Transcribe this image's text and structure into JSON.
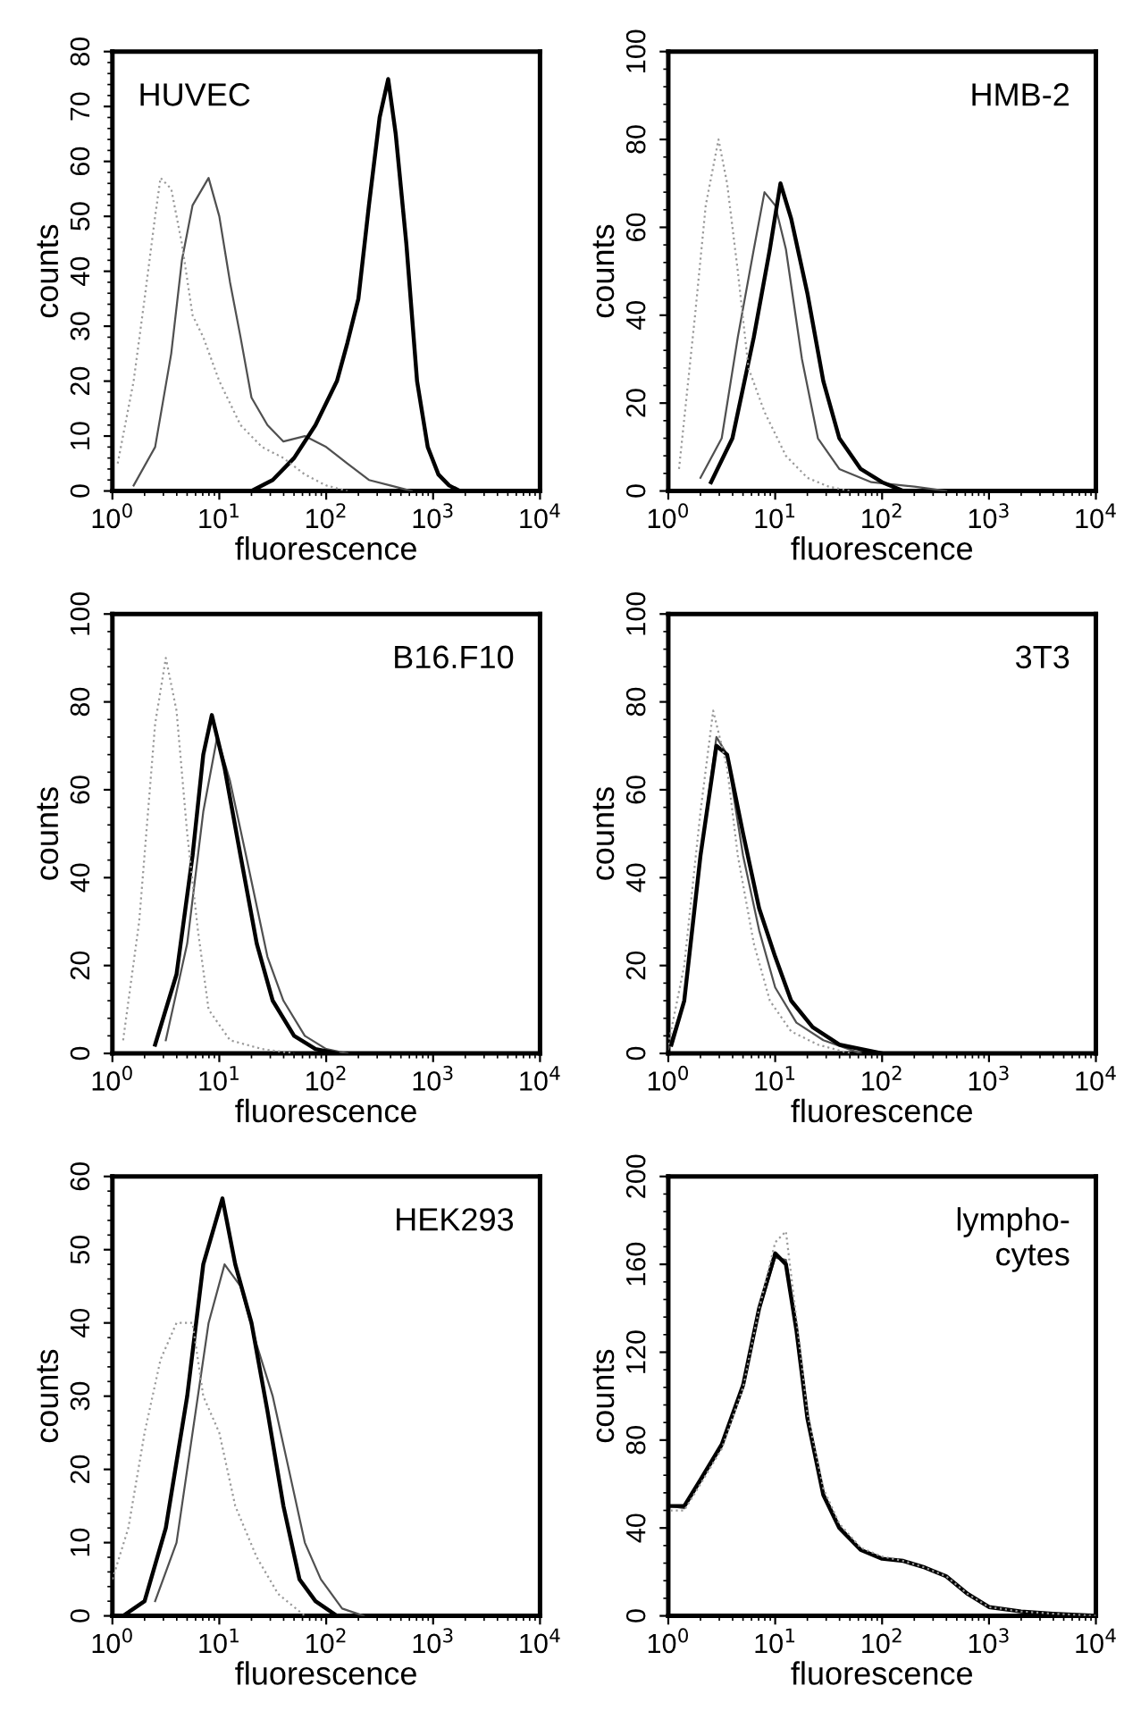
{
  "chart_data": [
    {
      "type": "line",
      "log": "x",
      "xlabel": "fluorescence",
      "ylabel": "counts",
      "annotations": [
        "HUVEC"
      ],
      "xlim": [
        1,
        10000
      ],
      "xticks": [
        {
          "value": 1,
          "label": "10$^{0}$"
        },
        {
          "value": 10,
          "label": "10$^{1}$"
        },
        {
          "value": 100,
          "label": "10$^{2}$"
        },
        {
          "value": 1000,
          "label": "10$^{3}$"
        },
        {
          "value": 10000,
          "label": "10$^{4}$"
        }
      ],
      "ylim": [
        0,
        80
      ],
      "yticks": [
        0,
        10,
        20,
        30,
        40,
        50,
        60,
        70,
        80
      ],
      "series": [
        {
          "color": "#9a9a9a",
          "line_style": "dotted",
          "x": [
            1.12,
            1.58,
            2.0,
            2.51,
            2.82,
            3.55,
            4.47,
            5.62,
            7.08,
            10,
            15.8,
            25.1,
            39.8,
            63.1,
            100,
            158
          ],
          "values": [
            5,
            20,
            35,
            50,
            57,
            55,
            45,
            32,
            28,
            20,
            12,
            8,
            6,
            3,
            1,
            0
          ]
        },
        {
          "color": "#505050",
          "line_style": "solid",
          "x": [
            1.58,
            2.51,
            3.55,
            4.47,
            5.62,
            7.94,
            10,
            12.6,
            15.8,
            20,
            28.2,
            39.8,
            63.1,
            100,
            158,
            251,
            398,
            631
          ],
          "values": [
            1,
            8,
            25,
            42,
            52,
            57,
            50,
            38,
            28,
            17,
            12,
            9,
            10,
            8,
            5,
            2,
            1,
            0
          ]
        },
        {
          "color": "#000000",
          "line_style": "solid",
          "x": [
            20,
            31.6,
            50.1,
            79.4,
            126,
            158,
            200,
            251,
            316,
            380,
            447,
            562,
            708,
            891,
            1122,
            1413,
            1778
          ],
          "values": [
            0,
            2,
            6,
            12,
            20,
            27,
            35,
            52,
            68,
            75,
            65,
            45,
            20,
            8,
            3,
            1,
            0
          ]
        }
      ]
    },
    {
      "type": "line",
      "log": "x",
      "xlabel": "fluorescence",
      "ylabel": "counts",
      "annotations": [
        "HMB-2"
      ],
      "xlim": [
        1,
        10000
      ],
      "xticks": [
        {
          "value": 1,
          "label": "10$^{0}$"
        },
        {
          "value": 10,
          "label": "10$^{1}$"
        },
        {
          "value": 100,
          "label": "10$^{2}$"
        },
        {
          "value": 1000,
          "label": "10$^{3}$"
        },
        {
          "value": 10000,
          "label": "10$^{4}$"
        }
      ],
      "ylim": [
        0,
        100
      ],
      "yticks": [
        0,
        20,
        40,
        60,
        80,
        100
      ],
      "series": [
        {
          "color": "#9a9a9a",
          "line_style": "dotted",
          "x": [
            1.26,
            1.78,
            2.24,
            2.95,
            3.55,
            4.47,
            5.62,
            7.94,
            12.6,
            20,
            31.6,
            50.1
          ],
          "values": [
            5,
            40,
            65,
            80,
            70,
            50,
            28,
            18,
            8,
            3,
            1,
            0
          ]
        },
        {
          "color": "#505050",
          "line_style": "solid",
          "x": [
            2.0,
            3.16,
            4.47,
            6.31,
            7.94,
            10,
            12.6,
            17.8,
            25.1,
            39.8,
            79.4,
            200,
            398
          ],
          "values": [
            3,
            12,
            35,
            55,
            68,
            65,
            55,
            30,
            12,
            5,
            2,
            1,
            0
          ]
        },
        {
          "color": "#000000",
          "line_style": "solid",
          "x": [
            2.51,
            3.98,
            6.31,
            8.91,
            11.2,
            14.1,
            20,
            28.2,
            39.8,
            63.1,
            100,
            158
          ],
          "values": [
            2,
            12,
            35,
            55,
            70,
            62,
            45,
            25,
            12,
            5,
            2,
            0
          ]
        }
      ]
    },
    {
      "type": "line",
      "log": "x",
      "xlabel": "fluorescence",
      "ylabel": "counts",
      "annotations": [
        "B16.F10"
      ],
      "xlim": [
        1,
        10000
      ],
      "xticks": [
        {
          "value": 1,
          "label": "10$^{0}$"
        },
        {
          "value": 10,
          "label": "10$^{1}$"
        },
        {
          "value": 100,
          "label": "10$^{2}$"
        },
        {
          "value": 1000,
          "label": "10$^{3}$"
        },
        {
          "value": 10000,
          "label": "10$^{4}$"
        }
      ],
      "ylim": [
        0,
        100
      ],
      "yticks": [
        0,
        20,
        40,
        60,
        80,
        100
      ],
      "series": [
        {
          "color": "#9a9a9a",
          "line_style": "dotted",
          "x": [
            1.26,
            1.78,
            2.51,
            3.16,
            3.98,
            5.01,
            6.31,
            7.94,
            12.6,
            25.1,
            50.1
          ],
          "values": [
            3,
            30,
            75,
            90,
            78,
            50,
            28,
            10,
            3,
            1,
            0
          ]
        },
        {
          "color": "#505050",
          "line_style": "solid",
          "x": [
            3.16,
            5.01,
            7.08,
            9.55,
            12.6,
            17.8,
            28.2,
            39.8,
            63.1,
            100,
            158
          ],
          "values": [
            3,
            25,
            55,
            72,
            62,
            45,
            22,
            12,
            4,
            1,
            0
          ]
        },
        {
          "color": "#000000",
          "line_style": "solid",
          "x": [
            2.51,
            3.98,
            5.62,
            7.08,
            8.51,
            11.2,
            15.8,
            22.4,
            31.6,
            50.1,
            79.4,
            126
          ],
          "values": [
            2,
            18,
            45,
            68,
            77,
            65,
            45,
            25,
            12,
            4,
            1,
            0
          ]
        }
      ]
    },
    {
      "type": "line",
      "log": "x",
      "xlabel": "fluorescence",
      "ylabel": "counts",
      "annotations": [
        "3T3"
      ],
      "xlim": [
        1,
        10000
      ],
      "xticks": [
        {
          "value": 1,
          "label": "10$^{0}$"
        },
        {
          "value": 10,
          "label": "10$^{1}$"
        },
        {
          "value": 100,
          "label": "10$^{2}$"
        },
        {
          "value": 1000,
          "label": "10$^{3}$"
        },
        {
          "value": 10000,
          "label": "10$^{4}$"
        }
      ],
      "ylim": [
        0,
        100
      ],
      "yticks": [
        0,
        20,
        40,
        60,
        80,
        100
      ],
      "series": [
        {
          "color": "#9a9a9a",
          "line_style": "dotted",
          "x": [
            1,
            1.41,
            2.0,
            2.63,
            3.55,
            4.47,
            6.31,
            8.91,
            14.1,
            25.1,
            50.1
          ],
          "values": [
            2,
            20,
            55,
            78,
            65,
            45,
            25,
            12,
            5,
            2,
            0
          ]
        },
        {
          "color": "#505050",
          "line_style": "solid",
          "x": [
            1,
            1.41,
            2.0,
            2.82,
            3.55,
            5.01,
            7.08,
            10,
            15.8,
            28.2,
            63.1
          ],
          "values": [
            1,
            12,
            45,
            72,
            68,
            45,
            28,
            15,
            7,
            3,
            0
          ]
        },
        {
          "color": "#000000",
          "line_style": "solid",
          "x": [
            1.07,
            1.41,
            2.0,
            2.82,
            3.55,
            5.01,
            7.08,
            10,
            14.1,
            22.4,
            39.8,
            100
          ],
          "values": [
            2,
            12,
            45,
            70,
            68,
            50,
            33,
            22,
            12,
            6,
            2,
            0
          ]
        }
      ]
    },
    {
      "type": "line",
      "log": "x",
      "xlabel": "fluorescence",
      "ylabel": "counts",
      "annotations": [
        "HEK293"
      ],
      "xlim": [
        1,
        10000
      ],
      "xticks": [
        {
          "value": 1,
          "label": "10$^{0}$"
        },
        {
          "value": 10,
          "label": "10$^{1}$"
        },
        {
          "value": 100,
          "label": "10$^{2}$"
        },
        {
          "value": 1000,
          "label": "10$^{3}$"
        },
        {
          "value": 10000,
          "label": "10$^{4}$"
        }
      ],
      "ylim": [
        0,
        60
      ],
      "yticks": [
        0,
        10,
        20,
        30,
        40,
        50,
        60
      ],
      "series": [
        {
          "color": "#9a9a9a",
          "line_style": "dotted",
          "x": [
            1,
            1.41,
            2.0,
            2.82,
            3.98,
            5.62,
            7.08,
            10,
            14.1,
            22.4,
            35.5,
            63.1
          ],
          "values": [
            5,
            12,
            25,
            35,
            40,
            40,
            30,
            25,
            15,
            8,
            3,
            0
          ]
        },
        {
          "color": "#505050",
          "line_style": "solid",
          "x": [
            2.51,
            3.98,
            5.62,
            7.94,
            11.2,
            15.8,
            22.4,
            31.6,
            44.7,
            63.1,
            89.1,
            141,
            224
          ],
          "values": [
            2,
            10,
            25,
            40,
            48,
            45,
            37,
            30,
            20,
            10,
            5,
            1,
            0
          ]
        },
        {
          "color": "#000000",
          "line_style": "solid",
          "x": [
            1.26,
            2.0,
            3.16,
            5.01,
            7.08,
            10.7,
            14.1,
            20,
            28.2,
            39.8,
            56.2,
            79.4,
            126
          ],
          "values": [
            0,
            2,
            12,
            30,
            48,
            57,
            48,
            40,
            28,
            15,
            5,
            2,
            0
          ]
        }
      ]
    },
    {
      "type": "line",
      "log": "x",
      "xlabel": "fluorescence",
      "ylabel": "counts",
      "annotations": [
        "lympho-\ncytes"
      ],
      "xlim": [
        1,
        10000
      ],
      "xticks": [
        {
          "value": 1,
          "label": "10$^{0}$"
        },
        {
          "value": 10,
          "label": "10$^{1}$"
        },
        {
          "value": 100,
          "label": "10$^{2}$"
        },
        {
          "value": 1000,
          "label": "10$^{3}$"
        },
        {
          "value": 10000,
          "label": "10$^{4}$"
        }
      ],
      "ylim": [
        0,
        200
      ],
      "yticks": [
        0,
        40,
        80,
        120,
        160,
        200
      ],
      "series": [
        {
          "color": "#9a9a9a",
          "line_style": "dotted",
          "x": [
            1.05,
            1.41,
            2.0,
            3.16,
            5.01,
            7.08,
            10,
            12.6,
            15.8,
            20,
            28.2,
            39.8,
            63.1,
            100,
            158,
            251,
            398,
            631,
            1000,
            1995,
            3981,
            10000
          ],
          "values": [
            48,
            48,
            60,
            76,
            104,
            140,
            170,
            175,
            135,
            92,
            58,
            42,
            31,
            27,
            25,
            22,
            18,
            10,
            4,
            2,
            1,
            0
          ]
        },
        {
          "color": "#505050",
          "line_style": "solid",
          "x": [
            1.05,
            1.41,
            2.0,
            3.16,
            5.01,
            7.08,
            10,
            12.6,
            15.8,
            20,
            28.2,
            39.8,
            63.1,
            100,
            158,
            251,
            398,
            631,
            1000,
            1995,
            3981,
            10000
          ],
          "values": [
            50,
            49,
            61,
            77,
            104,
            139,
            163,
            162,
            132,
            91,
            56,
            41,
            30,
            26,
            25,
            22,
            18,
            10,
            4,
            2,
            1,
            0
          ]
        },
        {
          "color": "#000000",
          "line_style": "solid",
          "x": [
            1.05,
            1.41,
            2.0,
            3.16,
            5.01,
            7.08,
            10,
            12.6,
            15.8,
            20,
            28.2,
            39.8,
            63.1,
            100,
            158,
            251,
            398,
            631,
            1000,
            1995,
            3981,
            10000
          ],
          "values": [
            50,
            50,
            62,
            78,
            105,
            140,
            165,
            160,
            130,
            90,
            55,
            40,
            30,
            26,
            25,
            22,
            18,
            10,
            4,
            2,
            1,
            0
          ]
        }
      ]
    }
  ]
}
